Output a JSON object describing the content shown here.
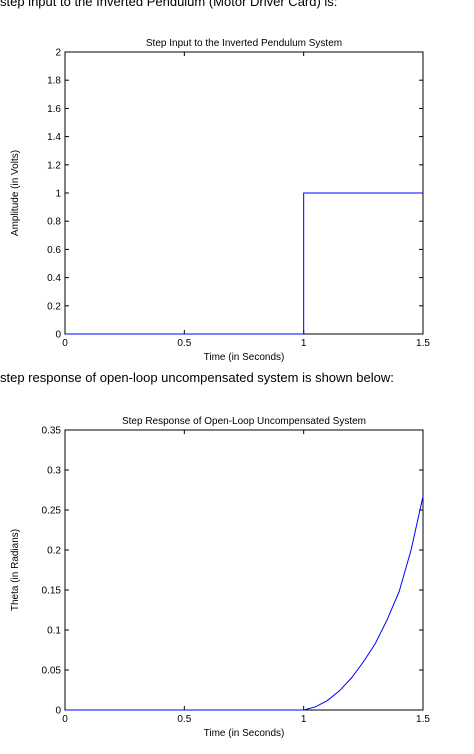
{
  "captions": [
    "step input to the Inverted Pendulum (Motor Driver Card) is:",
    "step response of open-loop uncompensated system is shown below:"
  ],
  "colors": {
    "line": "#0000ff",
    "axes": "#000000"
  },
  "chart_data": [
    {
      "type": "line",
      "title": "Step Input to the Inverted Pendulum System",
      "xlabel": "Time (in Seconds)",
      "ylabel": "Amplitude (in Volts)",
      "xlim": [
        0,
        1.5
      ],
      "ylim": [
        0,
        2
      ],
      "xticks": [
        0,
        0.5,
        1,
        1.5
      ],
      "xtick_labels": [
        "0",
        "0.5",
        "1",
        "1.5"
      ],
      "yticks": [
        0,
        0.2,
        0.4,
        0.6,
        0.8,
        1,
        1.2,
        1.4,
        1.6,
        1.8,
        2
      ],
      "ytick_labels": [
        "0",
        "0.2",
        "0.4",
        "0.6",
        "0.8",
        "1",
        "1.2",
        "1.4",
        "1.6",
        "1.8",
        "2"
      ],
      "grid": false,
      "series": [
        {
          "x": [
            0,
            1,
            1,
            1.5
          ],
          "y": [
            0,
            0,
            1,
            1
          ]
        }
      ]
    },
    {
      "type": "line",
      "title": "Step Response of Open-Loop Uncompensated System",
      "xlabel": "Time (in Seconds)",
      "ylabel": "Theta (in Radians)",
      "xlim": [
        0,
        1.5
      ],
      "ylim": [
        0,
        0.35
      ],
      "xticks": [
        0,
        0.5,
        1,
        1.5
      ],
      "xtick_labels": [
        "0",
        "0.5",
        "1",
        "1.5"
      ],
      "yticks": [
        0,
        0.05,
        0.1,
        0.15,
        0.2,
        0.25,
        0.3,
        0.35
      ],
      "ytick_labels": [
        "0",
        "0.05",
        "0.1",
        "0.15",
        "0.2",
        "0.25",
        "0.3",
        "0.35"
      ],
      "grid": false,
      "series": [
        {
          "x": [
            0,
            1,
            1.05,
            1.1,
            1.15,
            1.2,
            1.25,
            1.3,
            1.35,
            1.4,
            1.45,
            1.5
          ],
          "y": [
            0,
            0,
            0.004,
            0.012,
            0.024,
            0.04,
            0.06,
            0.083,
            0.113,
            0.148,
            0.2,
            0.267
          ]
        }
      ]
    }
  ]
}
